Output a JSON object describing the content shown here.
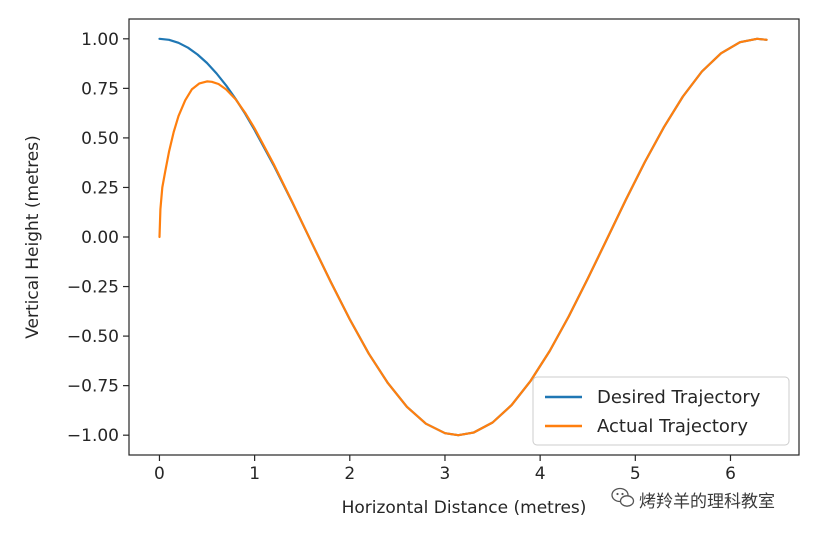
{
  "chart_data": {
    "type": "line",
    "title": "",
    "xlabel": "Horizontal Distance (metres)",
    "ylabel": "Vertical Height (metres)",
    "xlim": [
      -0.32,
      6.72
    ],
    "ylim": [
      -1.1,
      1.1
    ],
    "xticks": [
      0,
      1,
      2,
      3,
      4,
      5,
      6
    ],
    "xtick_labels": [
      "0",
      "1",
      "2",
      "3",
      "4",
      "5",
      "6"
    ],
    "yticks": [
      1.0,
      0.75,
      0.5,
      0.25,
      0.0,
      -0.25,
      -0.5,
      -0.75,
      -1.0
    ],
    "ytick_labels": [
      "1.00",
      "0.75",
      "0.50",
      "0.25",
      "0.00",
      "−0.25",
      "−0.50",
      "−0.75",
      "−1.00"
    ],
    "grid": false,
    "legend_position": "lower-right",
    "series": [
      {
        "name": "Desired Trajectory",
        "color": "#1f77b4",
        "x": [
          0.0,
          0.1,
          0.2,
          0.3,
          0.4,
          0.5,
          0.6,
          0.7,
          0.8,
          0.9,
          1.0,
          1.2,
          1.4,
          1.6,
          1.8,
          2.0,
          2.2,
          2.4,
          2.6,
          2.8,
          3.0,
          3.14,
          3.3,
          3.5,
          3.7,
          3.9,
          4.1,
          4.3,
          4.5,
          4.7,
          4.9,
          5.1,
          5.3,
          5.5,
          5.7,
          5.9,
          6.1,
          6.28,
          6.38
        ],
        "y": [
          1.0,
          0.995,
          0.98,
          0.955,
          0.921,
          0.878,
          0.825,
          0.765,
          0.697,
          0.622,
          0.54,
          0.362,
          0.17,
          -0.029,
          -0.227,
          -0.416,
          -0.589,
          -0.737,
          -0.857,
          -0.942,
          -0.99,
          -1.0,
          -0.987,
          -0.936,
          -0.848,
          -0.726,
          -0.575,
          -0.401,
          -0.211,
          -0.012,
          0.187,
          0.378,
          0.554,
          0.709,
          0.835,
          0.927,
          0.983,
          1.0,
          0.995
        ]
      },
      {
        "name": "Actual Trajectory",
        "color": "#ff7f0e",
        "x": [
          0.0,
          0.01,
          0.03,
          0.06,
          0.1,
          0.15,
          0.2,
          0.27,
          0.34,
          0.42,
          0.5,
          0.55,
          0.62,
          0.7,
          0.8,
          0.9,
          1.0,
          1.2,
          1.4,
          1.6,
          1.8,
          2.0,
          2.2,
          2.4,
          2.6,
          2.8,
          3.0,
          3.14,
          3.3,
          3.5,
          3.7,
          3.9,
          4.1,
          4.3,
          4.5,
          4.7,
          4.9,
          5.1,
          5.3,
          5.5,
          5.7,
          5.9,
          6.1,
          6.28,
          6.38
        ],
        "y": [
          0.0,
          0.14,
          0.25,
          0.33,
          0.43,
          0.53,
          0.61,
          0.69,
          0.745,
          0.775,
          0.785,
          0.783,
          0.772,
          0.745,
          0.695,
          0.627,
          0.548,
          0.368,
          0.172,
          -0.029,
          -0.227,
          -0.416,
          -0.589,
          -0.737,
          -0.857,
          -0.942,
          -0.99,
          -1.0,
          -0.987,
          -0.936,
          -0.848,
          -0.726,
          -0.575,
          -0.401,
          -0.211,
          -0.012,
          0.187,
          0.378,
          0.554,
          0.709,
          0.835,
          0.927,
          0.983,
          1.0,
          0.995
        ]
      }
    ]
  },
  "watermark": {
    "text": "烤羚羊的理科教室",
    "icon": "wechat-icon"
  }
}
